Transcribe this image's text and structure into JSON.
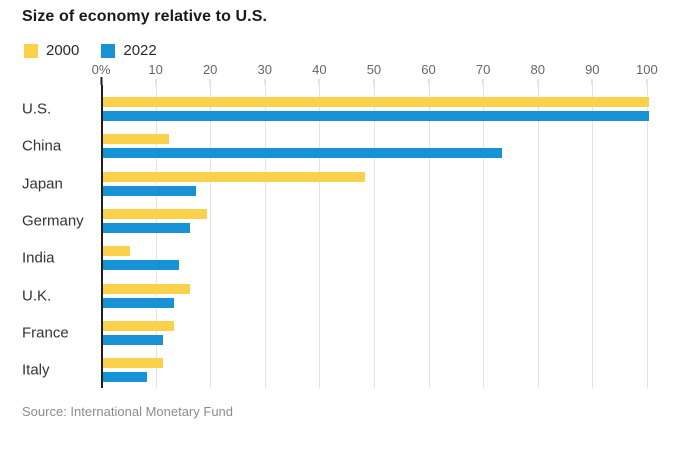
{
  "chart_data": {
    "type": "bar",
    "orientation": "horizontal",
    "title": "Size of economy relative to U.S.",
    "source": "Source: International Monetary Fund",
    "categories": [
      "U.S.",
      "China",
      "Japan",
      "Germany",
      "India",
      "U.K.",
      "France",
      "Italy"
    ],
    "series": [
      {
        "name": "2000",
        "color": "#fbd14b",
        "values": [
          100,
          12,
          48,
          19,
          5,
          16,
          13,
          11
        ]
      },
      {
        "name": "2022",
        "color": "#1793d5",
        "values": [
          100,
          73,
          17,
          16,
          14,
          13,
          11,
          8
        ]
      }
    ],
    "x_ticks": [
      {
        "label": "0%",
        "value": 0
      },
      {
        "label": "10",
        "value": 10
      },
      {
        "label": "20",
        "value": 20
      },
      {
        "label": "30",
        "value": 30
      },
      {
        "label": "40",
        "value": 40
      },
      {
        "label": "50",
        "value": 50
      },
      {
        "label": "60",
        "value": 60
      },
      {
        "label": "70",
        "value": 70
      },
      {
        "label": "80",
        "value": 80
      },
      {
        "label": "90",
        "value": 90
      },
      {
        "label": "100",
        "value": 100
      }
    ],
    "xlim": [
      0,
      102.4
    ],
    "grid": true,
    "legend_position": "top-left",
    "colors": {
      "gridline": "#e3e3e3",
      "axis_line": "#1f1f1f",
      "tick_label": "#666666",
      "category_label": "#333333",
      "source_text": "#8c8c8c"
    }
  }
}
